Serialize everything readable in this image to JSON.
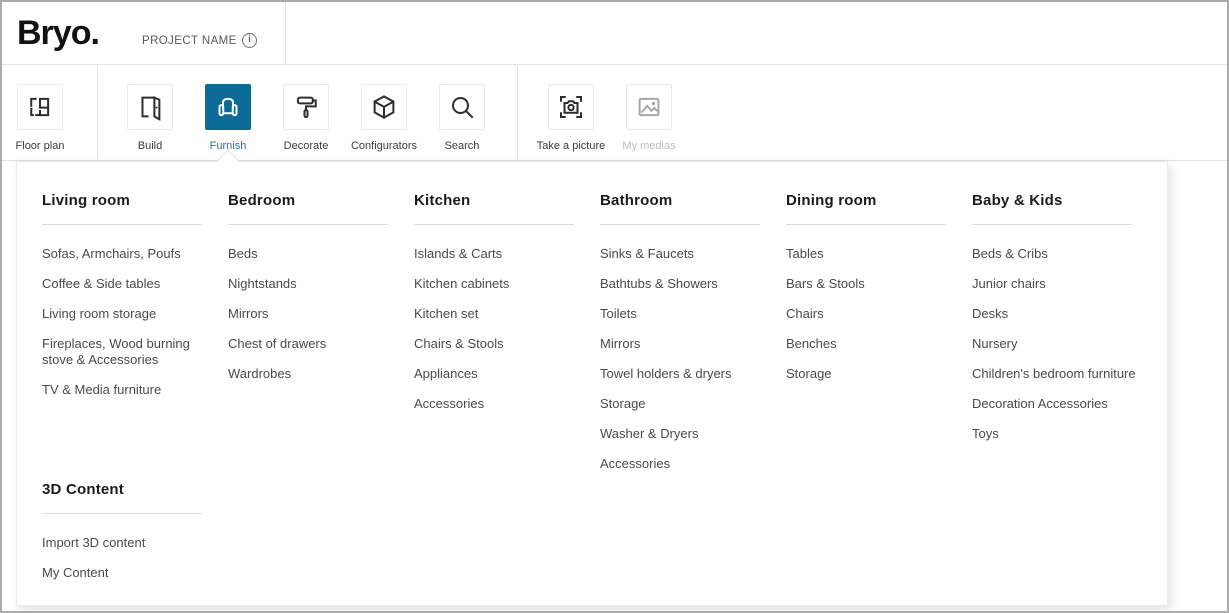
{
  "header": {
    "logo": "Bryo.",
    "project_name": "PROJECT NAME",
    "info_icon": "i"
  },
  "toolbar": {
    "buttons": [
      {
        "label": "Floor plan",
        "icon": "floor-plan-icon",
        "state": "default"
      },
      {
        "label": "Build",
        "icon": "door-icon",
        "state": "default"
      },
      {
        "label": "Furnish",
        "icon": "armchair-icon",
        "state": "active"
      },
      {
        "label": "Decorate",
        "icon": "paint-roller-icon",
        "state": "default"
      },
      {
        "label": "Configurators",
        "icon": "cube-icon",
        "state": "default"
      },
      {
        "label": "Search",
        "icon": "magnifier-icon",
        "state": "default"
      },
      {
        "label": "Take a picture",
        "icon": "camera-icon",
        "state": "default"
      },
      {
        "label": "My medias",
        "icon": "image-icon",
        "state": "disabled"
      }
    ]
  },
  "menu": {
    "columns": [
      {
        "title": "Living room",
        "items": [
          "Sofas, Armchairs, Poufs",
          "Coffee & Side tables",
          "Living room storage",
          "Fireplaces, Wood burning stove & Accessories",
          "TV & Media furniture"
        ]
      },
      {
        "title": "Bedroom",
        "items": [
          "Beds",
          "Nightstands",
          "Mirrors",
          "Chest of drawers",
          "Wardrobes"
        ]
      },
      {
        "title": "Kitchen",
        "items": [
          "Islands & Carts",
          "Kitchen cabinets",
          "Kitchen set",
          "Chairs & Stools",
          "Appliances",
          "Accessories"
        ]
      },
      {
        "title": "Bathroom",
        "items": [
          "Sinks & Faucets",
          "Bathtubs & Showers",
          "Toilets",
          "Mirrors",
          "Towel holders & dryers",
          "Storage",
          "Washer & Dryers",
          "Accessories"
        ]
      },
      {
        "title": "Dining room",
        "items": [
          "Tables",
          "Bars & Stools",
          "Chairs",
          "Benches",
          "Storage"
        ]
      },
      {
        "title": "Baby & Kids",
        "items": [
          "Beds & Cribs",
          "Junior chairs",
          "Desks",
          "Nursery",
          "Children's bedroom furniture",
          "Decoration Accessories",
          "Toys"
        ]
      }
    ],
    "extra_section": {
      "title": "3D Content",
      "items": [
        "Import 3D content",
        "My Content"
      ]
    }
  },
  "colors": {
    "accent": "#0c6a96",
    "accent_label": "#1379ae",
    "disabled_label": "#bdbdbd",
    "divider": "#e4e4e4",
    "menu_item_text": "#4a4a4a",
    "heading_text": "#1c1c1c"
  }
}
